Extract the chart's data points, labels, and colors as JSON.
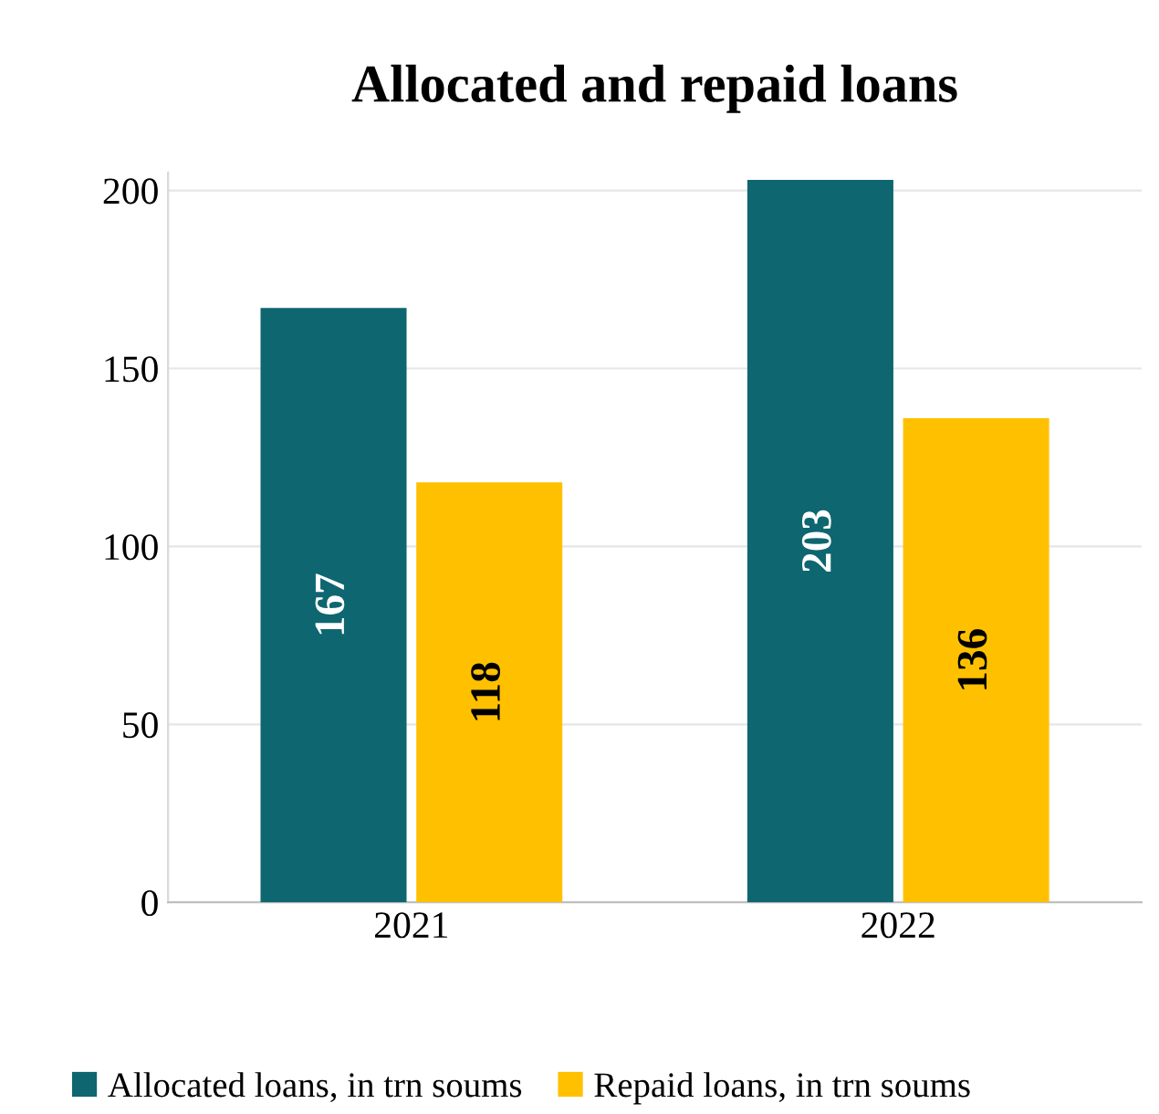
{
  "chart_data": {
    "type": "bar",
    "title": "Allocated and repaid loans",
    "categories": [
      "2021",
      "2022"
    ],
    "series": [
      {
        "name": "Allocated loans, in trn soums",
        "color": "#0e6670",
        "values": [
          167,
          203
        ]
      },
      {
        "name": "Repaid loans, in trn soums",
        "color": "#ffc000",
        "values": [
          118,
          136
        ]
      }
    ],
    "ylim": [
      0,
      205
    ],
    "yticks": [
      0,
      50,
      100,
      150,
      200
    ],
    "grid": "y",
    "legend": "bottom",
    "data_labels": true
  }
}
